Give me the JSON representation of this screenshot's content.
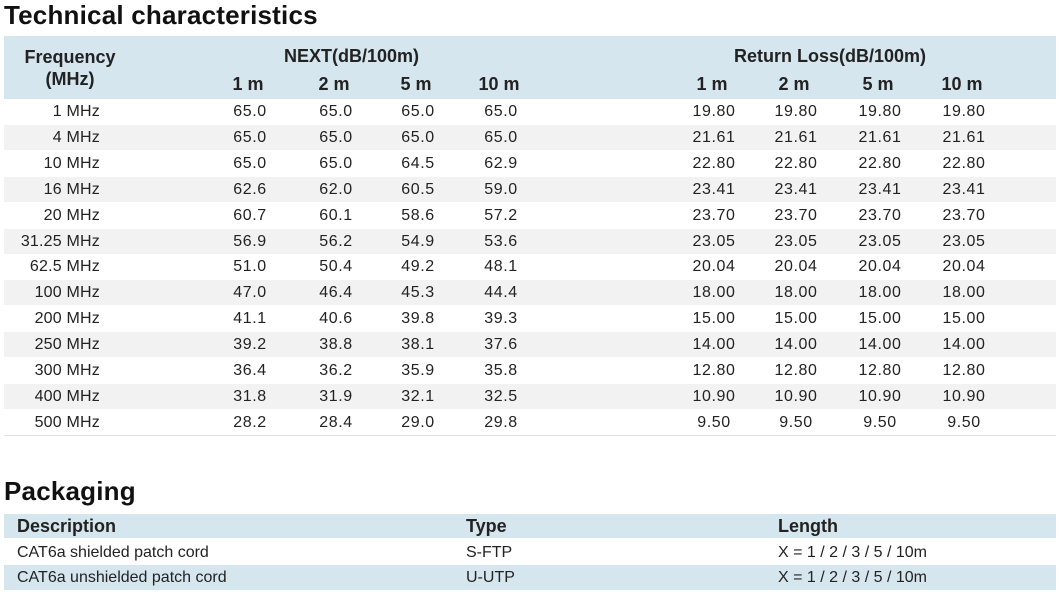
{
  "technical": {
    "title": "Technical characteristics",
    "freq_header_line1": "Frequency",
    "freq_header_line2": "(MHz)",
    "next_header": "NEXT(dB/100m)",
    "rl_header": "Return Loss(dB/100m)",
    "next_sub": [
      "1 m",
      "2 m",
      "5 m",
      "10 m"
    ],
    "rl_sub": [
      "1 m",
      "2 m",
      "5 m",
      "10 m"
    ],
    "rows": [
      {
        "freq": "1 MHz",
        "next": [
          "65.0",
          "65.0",
          "65.0",
          "65.0"
        ],
        "rl": [
          "19.80",
          "19.80",
          "19.80",
          "19.80"
        ]
      },
      {
        "freq": "4 MHz",
        "next": [
          "65.0",
          "65.0",
          "65.0",
          "65.0"
        ],
        "rl": [
          "21.61",
          "21.61",
          "21.61",
          "21.61"
        ]
      },
      {
        "freq": "10 MHz",
        "next": [
          "65.0",
          "65.0",
          "64.5",
          "62.9"
        ],
        "rl": [
          "22.80",
          "22.80",
          "22.80",
          "22.80"
        ]
      },
      {
        "freq": "16 MHz",
        "next": [
          "62.6",
          "62.0",
          "60.5",
          "59.0"
        ],
        "rl": [
          "23.41",
          "23.41",
          "23.41",
          "23.41"
        ]
      },
      {
        "freq": "20 MHz",
        "next": [
          "60.7",
          "60.1",
          "58.6",
          "57.2"
        ],
        "rl": [
          "23.70",
          "23.70",
          "23.70",
          "23.70"
        ]
      },
      {
        "freq": "31.25 MHz",
        "next": [
          "56.9",
          "56.2",
          "54.9",
          "53.6"
        ],
        "rl": [
          "23.05",
          "23.05",
          "23.05",
          "23.05"
        ]
      },
      {
        "freq": "62.5 MHz",
        "next": [
          "51.0",
          "50.4",
          "49.2",
          "48.1"
        ],
        "rl": [
          "20.04",
          "20.04",
          "20.04",
          "20.04"
        ]
      },
      {
        "freq": "100 MHz",
        "next": [
          "47.0",
          "46.4",
          "45.3",
          "44.4"
        ],
        "rl": [
          "18.00",
          "18.00",
          "18.00",
          "18.00"
        ]
      },
      {
        "freq": "200 MHz",
        "next": [
          "41.1",
          "40.6",
          "39.8",
          "39.3"
        ],
        "rl": [
          "15.00",
          "15.00",
          "15.00",
          "15.00"
        ]
      },
      {
        "freq": "250 MHz",
        "next": [
          "39.2",
          "38.8",
          "38.1",
          "37.6"
        ],
        "rl": [
          "14.00",
          "14.00",
          "14.00",
          "14.00"
        ]
      },
      {
        "freq": "300 MHz",
        "next": [
          "36.4",
          "36.2",
          "35.9",
          "35.8"
        ],
        "rl": [
          "12.80",
          "12.80",
          "12.80",
          "12.80"
        ]
      },
      {
        "freq": "400 MHz",
        "next": [
          "31.8",
          "31.9",
          "32.1",
          "32.5"
        ],
        "rl": [
          "10.90",
          "10.90",
          "10.90",
          "10.90"
        ]
      },
      {
        "freq": "500 MHz",
        "next": [
          "28.2",
          "28.4",
          "29.0",
          "29.8"
        ],
        "rl": [
          "9.50",
          "9.50",
          "9.50",
          "9.50"
        ]
      }
    ]
  },
  "packaging": {
    "title": "Packaging",
    "headers": {
      "description": "Description",
      "type": "Type",
      "length": "Length"
    },
    "rows": [
      {
        "description": "CAT6a shielded patch cord",
        "type": "S-FTP",
        "length": "X = 1 / 2 / 3 / 5 / 10m"
      },
      {
        "description": "CAT6a unshielded patch cord",
        "type": "U-UTP",
        "length": "X = 1 / 2 / 3 / 5 / 10m"
      }
    ]
  },
  "colors": {
    "header_bg": "#d6e6ee",
    "row_alt_bg": "#f2f2f2"
  }
}
